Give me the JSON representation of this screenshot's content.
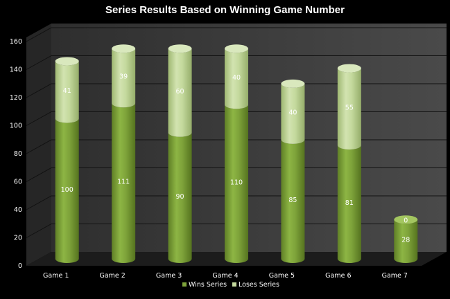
{
  "chart_data": {
    "type": "bar",
    "stacked": true,
    "style": "3d-cylinder",
    "title": "Series Results Based on Winning Game Number",
    "xlabel": "",
    "ylabel": "",
    "categories": [
      "Game 1",
      "Game 2",
      "Game 3",
      "Game 4",
      "Game 5",
      "Game 6",
      "Game 7"
    ],
    "series": [
      {
        "name": "Wins Series",
        "values": [
          100,
          111,
          90,
          110,
          85,
          81,
          28
        ],
        "color": "#7ea33a"
      },
      {
        "name": "Loses Series",
        "values": [
          41,
          39,
          60,
          40,
          40,
          55,
          0
        ],
        "color": "#c4d99d"
      }
    ],
    "ylim": [
      0,
      160
    ],
    "yticks": [
      "0",
      "20",
      "40",
      "60",
      "80",
      "100",
      "120",
      "140",
      "160"
    ],
    "grid": true,
    "legend": "bottom",
    "background": "#000000",
    "wall_color": "#3a3a3a",
    "floor_color": "#1c1c1c"
  }
}
